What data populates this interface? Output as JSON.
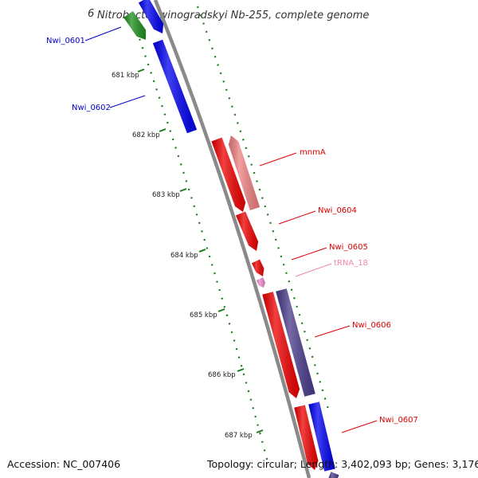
{
  "title": "Nitrobacter winogradskyi Nb-255, complete genome",
  "title_clip": "6",
  "footer": {
    "accession": "Accession: NC_007406",
    "topology": "Topology: circular; Length: 3,402,093 bp; Genes: 3,176"
  },
  "colors": {
    "backbone": "#8a8a8a",
    "ticks": "#1a7a1a",
    "forward_label": "#0000cc",
    "reverse_label": "#dd0000",
    "trna_label": "#ee88aa",
    "blue": "#0000ee",
    "green": "#1f8f1f",
    "red": "#ee0000",
    "pink": "#ee8080",
    "purple": "#4a3a8a",
    "trna": "#ee88cc"
  },
  "ticks": [
    {
      "label": "681 kbp"
    },
    {
      "label": "682 kbp"
    },
    {
      "label": "683 kbp"
    },
    {
      "label": "684 kbp"
    },
    {
      "label": "685 kbp"
    },
    {
      "label": "686 kbp"
    },
    {
      "label": "687 kbp"
    }
  ],
  "genes": [
    {
      "id": "green-upper",
      "label": "Nwi_0601",
      "label_color": "forward_label",
      "fill": "green"
    },
    {
      "id": "blue-upper",
      "label": "Nwi_0602",
      "label_color": "forward_label",
      "fill": "blue"
    },
    {
      "id": "pink",
      "label": "mnmA",
      "label_color": "reverse_label",
      "fill": "pink"
    },
    {
      "id": "red-big",
      "label": "Nwi_0604",
      "label_color": "reverse_label",
      "fill": "red"
    },
    {
      "id": "red-mid",
      "label": "Nwi_0605",
      "label_color": "reverse_label",
      "fill": "red"
    },
    {
      "id": "trna",
      "label": "tRNA_18",
      "label_color": "trna_label",
      "fill": "trna"
    },
    {
      "id": "purple",
      "label": "Nwi_0606",
      "label_color": "reverse_label",
      "fill": "purple"
    },
    {
      "id": "red-small",
      "label": "",
      "label_color": "reverse_label",
      "fill": "red"
    },
    {
      "id": "red-lower",
      "label": "Nwi_0607",
      "label_color": "reverse_label",
      "fill": "red"
    },
    {
      "id": "blue-lower",
      "label": "",
      "label_color": "forward_label",
      "fill": "blue"
    },
    {
      "id": "purple-lower",
      "label": "",
      "label_color": "reverse_label",
      "fill": "purple"
    }
  ]
}
